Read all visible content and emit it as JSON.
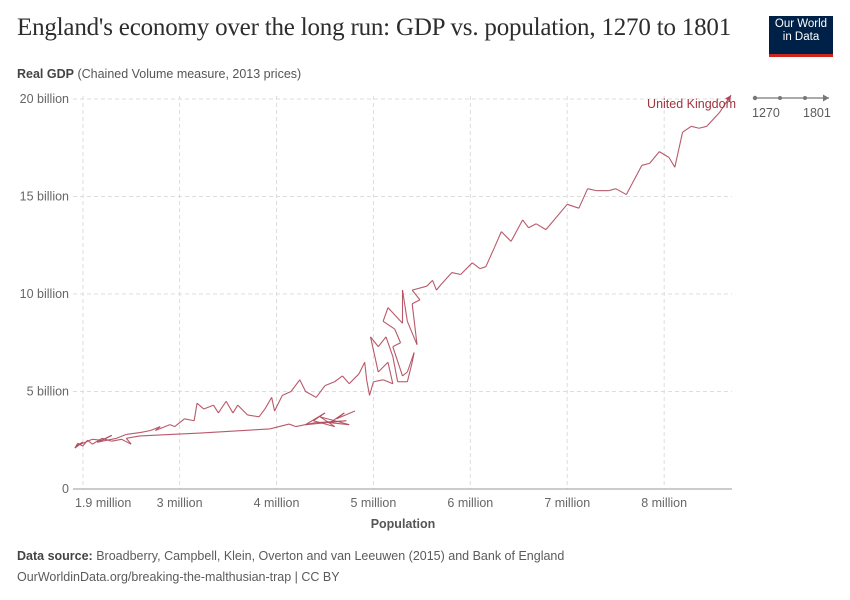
{
  "header": {
    "title": "England's economy over the long run: GDP vs. population, 1270 to 1801",
    "logo_line1": "Our World",
    "logo_line2": "in Data"
  },
  "footer": {
    "source_label": "Data source:",
    "source_text": "Broadberry, Campbell, Klein, Overton and van Leeuwen (2015) and Bank of England",
    "url_text": "OurWorldinData.org/breaking-the-malthusian-trap | CC BY"
  },
  "timeline": {
    "start": "1270",
    "end": "1801"
  },
  "colors": {
    "series": "#b0485a",
    "label": "#a2333d",
    "logo_bg": "#002147",
    "logo_accent": "#ce261e"
  },
  "chart_data": {
    "type": "line",
    "title": "England's economy over the long run: GDP vs. population, 1270 to 1801",
    "ylabel_bold": "Real GDP",
    "ylabel_rest": "(Chained Volume measure, 2013 prices)",
    "xlabel": "Population",
    "xlim": [
      1.9,
      8.7
    ],
    "ylim": [
      0,
      20
    ],
    "x_unit": "million",
    "y_unit": "billion",
    "x_ticks": [
      {
        "value": 1.9,
        "label": "1.9 million"
      },
      {
        "value": 3,
        "label": "3 million"
      },
      {
        "value": 4,
        "label": "4 million"
      },
      {
        "value": 5,
        "label": "5 million"
      },
      {
        "value": 6,
        "label": "6 million"
      },
      {
        "value": 7,
        "label": "7 million"
      },
      {
        "value": 8,
        "label": "8 million"
      }
    ],
    "y_ticks": [
      {
        "value": 0,
        "label": "0"
      },
      {
        "value": 5,
        "label": "5 billion"
      },
      {
        "value": 10,
        "label": "10 billion"
      },
      {
        "value": 15,
        "label": "15 billion"
      },
      {
        "value": 20,
        "label": "20 billion"
      }
    ],
    "grid": true,
    "series": [
      {
        "name": "United Kingdom",
        "points": [
          [
            4.81,
            4.0
          ],
          [
            4.62,
            3.6
          ],
          [
            4.7,
            3.9
          ],
          [
            4.55,
            3.4
          ],
          [
            4.75,
            3.3
          ],
          [
            4.45,
            3.7
          ],
          [
            4.6,
            3.2
          ],
          [
            4.38,
            3.5
          ],
          [
            4.5,
            3.9
          ],
          [
            4.3,
            3.3
          ],
          [
            4.72,
            3.5
          ],
          [
            4.4,
            3.4
          ],
          [
            4.2,
            3.2
          ],
          [
            4.13,
            3.33
          ],
          [
            3.93,
            3.08
          ],
          [
            3.21,
            2.87
          ],
          [
            2.59,
            2.72
          ],
          [
            2.45,
            2.6
          ],
          [
            2.5,
            2.3
          ],
          [
            2.4,
            2.55
          ],
          [
            2.3,
            2.45
          ],
          [
            2.2,
            2.6
          ],
          [
            2.1,
            2.3
          ],
          [
            2.05,
            2.5
          ],
          [
            2.0,
            2.2
          ],
          [
            1.95,
            2.35
          ],
          [
            1.92,
            2.1
          ],
          [
            2.0,
            2.4
          ],
          [
            1.93,
            2.2
          ],
          [
            2.1,
            2.55
          ],
          [
            2.2,
            2.5
          ],
          [
            2.3,
            2.75
          ],
          [
            2.15,
            2.4
          ],
          [
            2.35,
            2.6
          ],
          [
            2.45,
            2.8
          ],
          [
            2.6,
            2.9
          ],
          [
            2.7,
            3.0
          ],
          [
            2.8,
            3.2
          ],
          [
            2.75,
            3.0
          ],
          [
            2.9,
            3.3
          ],
          [
            2.95,
            3.2
          ],
          [
            3.05,
            3.6
          ],
          [
            3.15,
            3.5
          ],
          [
            3.18,
            4.4
          ],
          [
            3.25,
            4.1
          ],
          [
            3.35,
            4.3
          ],
          [
            3.4,
            3.9
          ],
          [
            3.48,
            4.5
          ],
          [
            3.55,
            3.9
          ],
          [
            3.6,
            4.3
          ],
          [
            3.7,
            3.8
          ],
          [
            3.82,
            3.7
          ],
          [
            3.88,
            4.1
          ],
          [
            3.95,
            4.7
          ],
          [
            3.98,
            4.0
          ],
          [
            4.06,
            4.8
          ],
          [
            4.15,
            5.0
          ],
          [
            4.24,
            5.6
          ],
          [
            4.3,
            5.0
          ],
          [
            4.41,
            4.7
          ],
          [
            4.5,
            5.3
          ],
          [
            4.6,
            5.5
          ],
          [
            4.68,
            5.8
          ],
          [
            4.75,
            5.4
          ],
          [
            4.85,
            5.9
          ],
          [
            4.91,
            6.5
          ],
          [
            4.93,
            5.6
          ],
          [
            4.96,
            4.8
          ],
          [
            5.0,
            5.5
          ],
          [
            5.1,
            5.6
          ],
          [
            5.2,
            5.4
          ],
          [
            5.15,
            6.5
          ],
          [
            5.05,
            6.0
          ],
          [
            4.97,
            7.8
          ],
          [
            5.05,
            7.3
          ],
          [
            5.13,
            7.8
          ],
          [
            5.2,
            6.8
          ],
          [
            5.25,
            5.5
          ],
          [
            5.35,
            5.5
          ],
          [
            5.4,
            6.5
          ],
          [
            5.42,
            7.0
          ],
          [
            5.35,
            6.0
          ],
          [
            5.3,
            5.8
          ],
          [
            5.2,
            7.3
          ],
          [
            5.28,
            7.5
          ],
          [
            5.22,
            8.2
          ],
          [
            5.1,
            8.6
          ],
          [
            5.15,
            9.3
          ],
          [
            5.3,
            8.5
          ],
          [
            5.3,
            10.2
          ],
          [
            5.35,
            8.6
          ],
          [
            5.45,
            7.4
          ],
          [
            5.4,
            9.5
          ],
          [
            5.48,
            9.7
          ],
          [
            5.4,
            10.2
          ],
          [
            5.55,
            10.4
          ],
          [
            5.61,
            10.7
          ],
          [
            5.65,
            10.2
          ],
          [
            5.7,
            10.5
          ],
          [
            5.81,
            11.1
          ],
          [
            5.9,
            11.0
          ],
          [
            6.02,
            11.6
          ],
          [
            6.1,
            11.3
          ],
          [
            6.16,
            11.4
          ],
          [
            6.25,
            12.4
          ],
          [
            6.32,
            13.2
          ],
          [
            6.42,
            12.7
          ],
          [
            6.54,
            13.8
          ],
          [
            6.6,
            13.4
          ],
          [
            6.68,
            13.6
          ],
          [
            6.78,
            13.3
          ],
          [
            7.0,
            14.6
          ],
          [
            7.12,
            14.4
          ],
          [
            7.21,
            15.4
          ],
          [
            7.3,
            15.3
          ],
          [
            7.43,
            15.3
          ],
          [
            7.5,
            15.4
          ],
          [
            7.61,
            15.1
          ],
          [
            7.77,
            16.6
          ],
          [
            7.85,
            16.7
          ],
          [
            7.95,
            17.3
          ],
          [
            8.05,
            17.0
          ],
          [
            8.11,
            16.5
          ],
          [
            8.19,
            18.3
          ],
          [
            8.28,
            18.6
          ],
          [
            8.36,
            18.5
          ],
          [
            8.44,
            18.6
          ],
          [
            8.57,
            19.3
          ],
          [
            8.69,
            20.2
          ]
        ]
      }
    ]
  }
}
